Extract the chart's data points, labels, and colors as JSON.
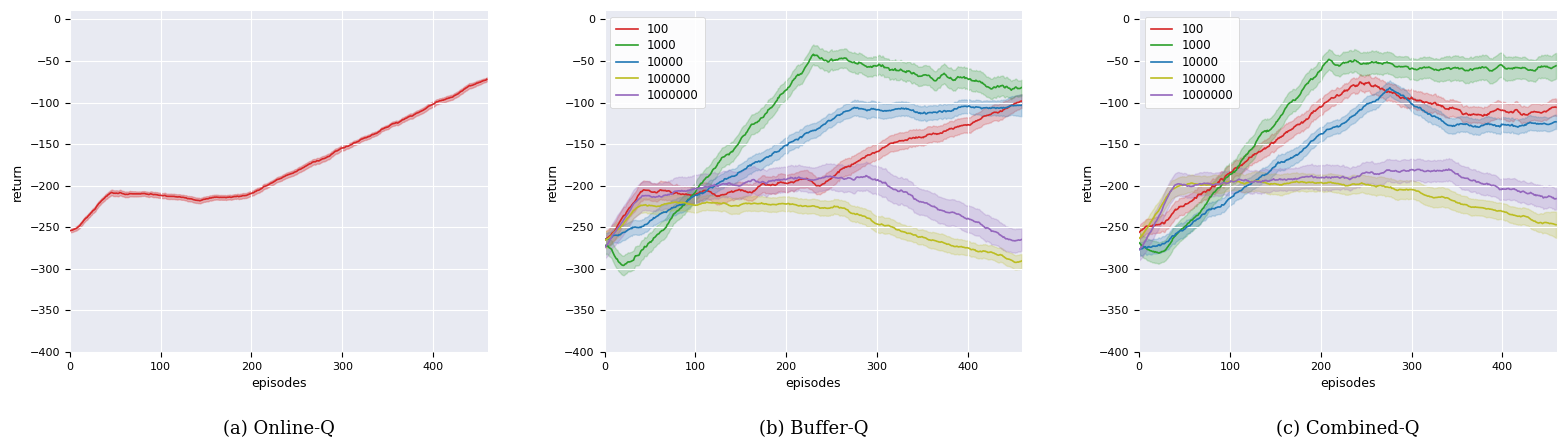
{
  "figsize": [
    15.68,
    4.4
  ],
  "dpi": 100,
  "titles": [
    "(a) Online-Q",
    "(b) Buffer-Q",
    "(c) Combined-Q"
  ],
  "xlabel": "episodes",
  "ylabel": "return",
  "ylim": [
    -400,
    10
  ],
  "xlim": [
    0,
    460
  ],
  "yticks": [
    0,
    -50,
    -100,
    -150,
    -200,
    -250,
    -300,
    -350,
    -400
  ],
  "xticks": [
    0,
    100,
    200,
    300,
    400
  ],
  "bg_color": "#E8EAF2",
  "legend_labels": [
    "100",
    "1000",
    "10000",
    "100000",
    "1000000"
  ],
  "colors": [
    "#d62728",
    "#2ca02c",
    "#1f77b4",
    "#bcbd22",
    "#9467bd"
  ],
  "seed": 7,
  "n_episodes": 460
}
